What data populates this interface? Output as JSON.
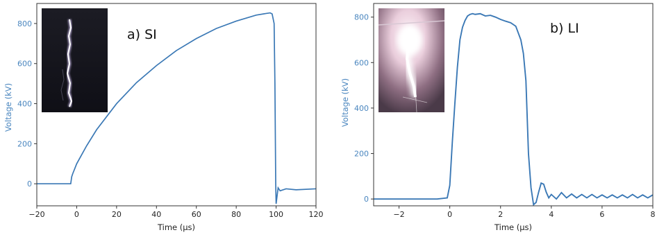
{
  "colors": {
    "line": "#3a78b5",
    "axis": "#333333",
    "ylabel": "#4a86bf"
  },
  "chart_data": [
    {
      "type": "line",
      "title": "a) SI",
      "xlabel": "Time (μs)",
      "ylabel": "Voltage (kV)",
      "xlim": [
        -20,
        120
      ],
      "ylim": [
        -110,
        900
      ],
      "xticks": [
        -20,
        0,
        20,
        40,
        60,
        80,
        100,
        120
      ],
      "yticks": [
        0,
        200,
        400,
        600,
        800
      ],
      "grid": false,
      "inset_photo": "vertical-discharge-channel-photo",
      "series": [
        {
          "x": [
            -20,
            -10,
            -3,
            -2.5,
            -2,
            -1,
            0,
            5,
            10,
            20,
            30,
            40,
            50,
            60,
            70,
            80,
            90,
            95,
            97,
            98,
            99,
            99.4,
            99.8,
            100,
            101,
            102,
            105,
            110,
            120
          ],
          "y": [
            0,
            0,
            0,
            35,
            50,
            75,
            100,
            190,
            270,
            400,
            505,
            590,
            665,
            725,
            775,
            812,
            842,
            850,
            853,
            848,
            800,
            500,
            0,
            -100,
            -20,
            -35,
            -25,
            -30,
            -25
          ]
        }
      ]
    },
    {
      "type": "line",
      "title": "b) LI",
      "xlabel": "Time (μs)",
      "ylabel": "Voltage (kV)",
      "xlim": [
        -3,
        8
      ],
      "ylim": [
        -30,
        860
      ],
      "xticks": [
        -2,
        0,
        2,
        4,
        6,
        8
      ],
      "yticks": [
        0,
        200,
        400,
        600,
        800
      ],
      "grid": false,
      "inset_photo": "bright-discharge-photo",
      "series": [
        {
          "x": [
            -3,
            -2.5,
            -2,
            -1.5,
            -1,
            -0.5,
            -0.1,
            0,
            0.1,
            0.2,
            0.3,
            0.4,
            0.5,
            0.6,
            0.7,
            0.8,
            0.9,
            1.0,
            1.2,
            1.4,
            1.6,
            1.8,
            2.0,
            2.2,
            2.4,
            2.6,
            2.8,
            2.9,
            3.0,
            3.1,
            3.2,
            3.3,
            3.4,
            3.5,
            3.6,
            3.7,
            3.8,
            3.9,
            4.0,
            4.2,
            4.4,
            4.6,
            4.8,
            5.0,
            5.2,
            5.4,
            5.6,
            5.8,
            6.0,
            6.2,
            6.4,
            6.6,
            6.8,
            7.0,
            7.2,
            7.4,
            7.6,
            7.8,
            8.0
          ],
          "y": [
            0,
            0,
            0,
            0,
            0,
            0,
            5,
            60,
            250,
            420,
            580,
            700,
            755,
            785,
            805,
            812,
            815,
            812,
            815,
            805,
            808,
            800,
            790,
            782,
            775,
            760,
            700,
            640,
            520,
            200,
            50,
            -25,
            -15,
            30,
            70,
            65,
            30,
            5,
            20,
            0,
            28,
            5,
            22,
            5,
            20,
            5,
            20,
            5,
            18,
            5,
            18,
            5,
            18,
            5,
            20,
            5,
            18,
            5,
            18
          ]
        }
      ]
    }
  ]
}
